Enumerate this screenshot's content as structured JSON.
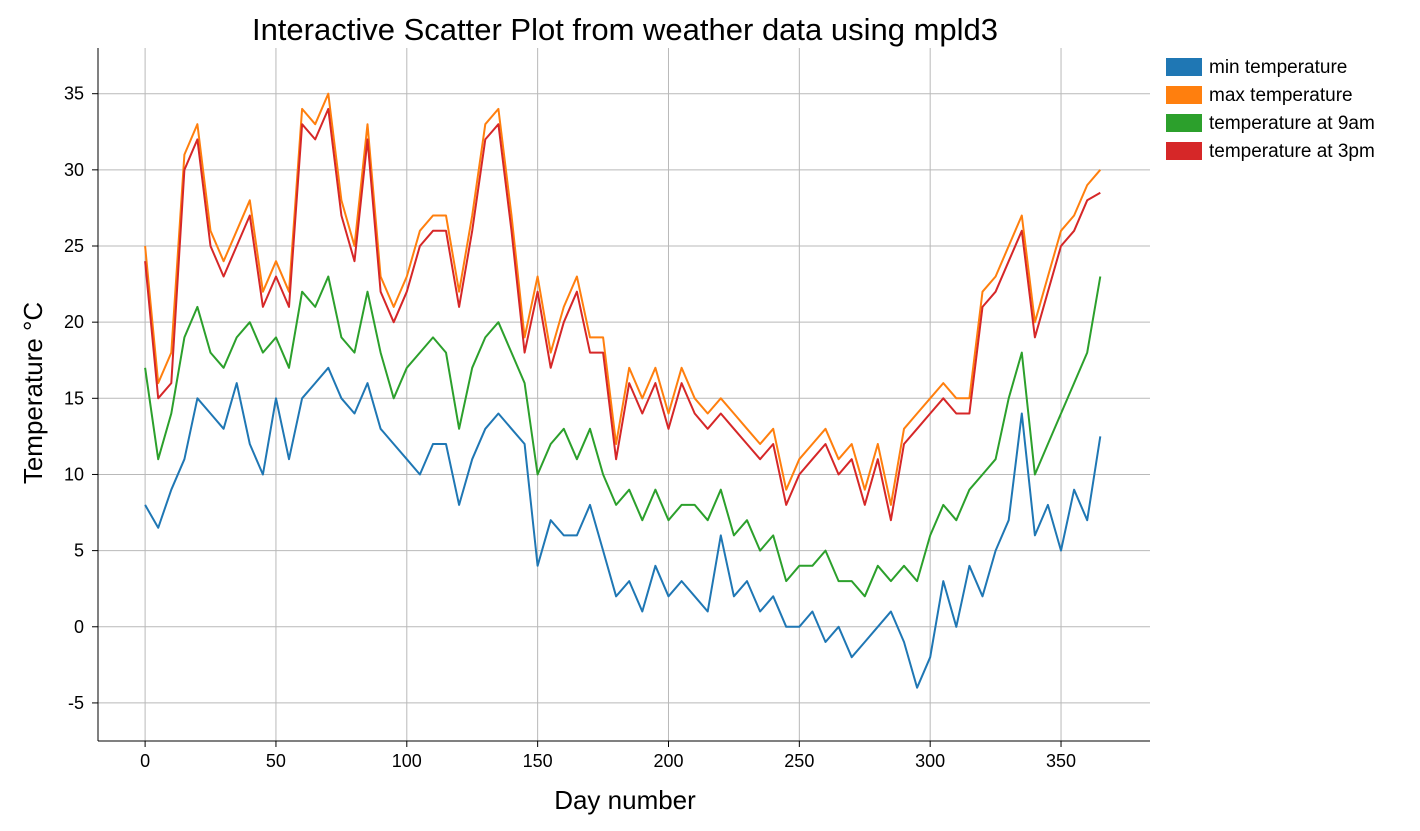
{
  "chart_data": {
    "type": "line",
    "title": "Interactive Scatter Plot from weather data using mpld3",
    "xlabel": "Day number",
    "ylabel": "Temperature °C",
    "xlim": [
      -18,
      384
    ],
    "ylim": [
      -7.5,
      38
    ],
    "xticks": [
      0,
      50,
      100,
      150,
      200,
      250,
      300,
      350
    ],
    "yticks": [
      -5,
      0,
      5,
      10,
      15,
      20,
      25,
      30,
      35
    ],
    "grid": true,
    "legend_position": "top-right",
    "x": [
      0,
      5,
      10,
      15,
      20,
      25,
      30,
      35,
      40,
      45,
      50,
      55,
      60,
      65,
      70,
      75,
      80,
      85,
      90,
      95,
      100,
      105,
      110,
      115,
      120,
      125,
      130,
      135,
      140,
      145,
      150,
      155,
      160,
      165,
      170,
      175,
      180,
      185,
      190,
      195,
      200,
      205,
      210,
      215,
      220,
      225,
      230,
      235,
      240,
      245,
      250,
      255,
      260,
      265,
      270,
      275,
      280,
      285,
      290,
      295,
      300,
      305,
      310,
      315,
      320,
      325,
      330,
      335,
      340,
      345,
      350,
      355,
      360,
      365
    ],
    "series": [
      {
        "name": "min temperature",
        "color": "#1f77b4",
        "values": [
          8,
          6.5,
          9,
          11,
          15,
          14,
          13,
          16,
          12,
          10,
          15,
          11,
          15,
          16,
          17,
          15,
          14,
          16,
          13,
          12,
          11,
          10,
          12,
          12,
          8,
          11,
          13,
          14,
          13,
          12,
          4,
          7,
          6,
          6,
          8,
          5,
          2,
          3,
          1,
          4,
          2,
          3,
          2,
          1,
          6,
          2,
          3,
          1,
          2,
          0,
          0,
          1,
          -1,
          0,
          -2,
          -1,
          0,
          1,
          -1,
          -4,
          -2,
          3,
          0,
          4,
          2,
          5,
          7,
          14,
          6,
          8,
          5,
          9,
          7,
          12.5
        ]
      },
      {
        "name": "max temperature",
        "color": "#ff7f0e",
        "values": [
          25,
          16,
          18,
          31,
          33,
          26,
          24,
          26,
          28,
          22,
          24,
          22,
          34,
          33,
          35,
          28,
          25,
          33,
          23,
          21,
          23,
          26,
          27,
          27,
          22,
          27,
          33,
          34,
          27,
          19,
          23,
          18,
          21,
          23,
          19,
          19,
          12,
          17,
          15,
          17,
          14,
          17,
          15,
          14,
          15,
          14,
          13,
          12,
          13,
          9,
          11,
          12,
          13,
          11,
          12,
          9,
          12,
          8,
          13,
          14,
          15,
          16,
          15,
          15,
          22,
          23,
          25,
          27,
          20,
          23,
          26,
          27,
          29,
          30
        ]
      },
      {
        "name": "temperature at 9am",
        "color": "#2ca02c",
        "values": [
          17,
          11,
          14,
          19,
          21,
          18,
          17,
          19,
          20,
          18,
          19,
          17,
          22,
          21,
          23,
          19,
          18,
          22,
          18,
          15,
          17,
          18,
          19,
          18,
          13,
          17,
          19,
          20,
          18,
          16,
          10,
          12,
          13,
          11,
          13,
          10,
          8,
          9,
          7,
          9,
          7,
          8,
          8,
          7,
          9,
          6,
          7,
          5,
          6,
          3,
          4,
          4,
          5,
          3,
          3,
          2,
          4,
          3,
          4,
          3,
          6,
          8,
          7,
          9,
          10,
          11,
          15,
          18,
          10,
          12,
          14,
          16,
          18,
          23
        ]
      },
      {
        "name": "temperature at 3pm",
        "color": "#d62728",
        "values": [
          24,
          15,
          16,
          30,
          32,
          25,
          23,
          25,
          27,
          21,
          23,
          21,
          33,
          32,
          34,
          27,
          24,
          32,
          22,
          20,
          22,
          25,
          26,
          26,
          21,
          26,
          32,
          33,
          26,
          18,
          22,
          17,
          20,
          22,
          18,
          18,
          11,
          16,
          14,
          16,
          13,
          16,
          14,
          13,
          14,
          13,
          12,
          11,
          12,
          8,
          10,
          11,
          12,
          10,
          11,
          8,
          11,
          7,
          12,
          13,
          14,
          15,
          14,
          14,
          21,
          22,
          24,
          26,
          19,
          22,
          25,
          26,
          28,
          28.5
        ]
      }
    ]
  }
}
